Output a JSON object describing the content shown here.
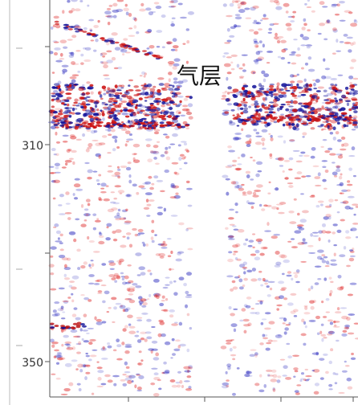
{
  "annotation": "气层",
  "axis": {
    "tick_labels": [
      "310",
      "350"
    ]
  }
}
